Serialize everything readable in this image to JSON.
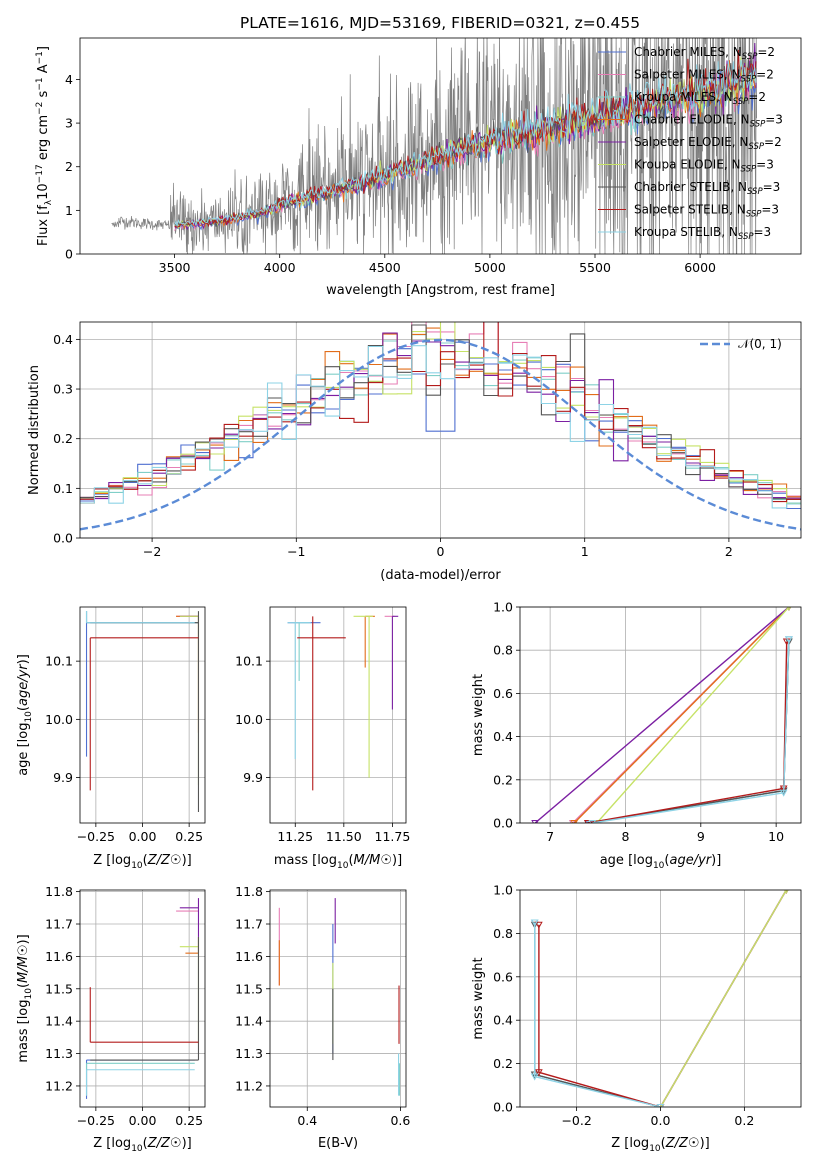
{
  "figure_title": "PLATE=1616, MJD=53169, FIBERID=0321, z=0.455",
  "model_colors": [
    "#4f6fd0",
    "#e77fb6",
    "#80cfc8",
    "#e26d1a",
    "#7b1fa2",
    "#c6e267",
    "#555555",
    "#b31b1b",
    "#8ed3e6"
  ],
  "legend_labels": [
    "Chabrier MILES, N",
    "Salpeter MILES, N",
    "Kroupa MILES, N",
    "Chabrier ELODIE, N",
    "Salpeter ELODIE, N",
    "Kroupa ELODIE, N",
    "Chabrier STELIB, N",
    "Salpeter STELIB, N",
    "Kroupa STELIB, N"
  ],
  "legend_sub": "SSP",
  "legend_nssp": [
    "=2",
    "=2",
    "=2",
    "=3",
    "=2",
    "=3",
    "=3",
    "=3",
    "=3"
  ],
  "chart_data": [
    {
      "id": "spectrum",
      "type": "line",
      "xlabel": "wavelength [Angstrom, rest frame]",
      "ylabel": "Flux [f_λ 10^-17 erg cm^-2 s^-1 A^-1]",
      "xlim": [
        3050,
        6480
      ],
      "ylim": [
        0,
        4.95
      ],
      "xticks": [
        3500,
        4000,
        4500,
        5000,
        5500,
        6000
      ],
      "yticks": [
        0,
        1,
        2,
        3,
        4
      ],
      "grid": false,
      "legend": "top-right",
      "data_color": "#7f7f7f",
      "data_x_range": [
        3200,
        6270
      ],
      "model_x_range": [
        3500,
        6270
      ],
      "model_profile": {
        "x": [
          3200,
          3350,
          3500,
          3700,
          3900,
          4000,
          4200,
          4400,
          4600,
          4800,
          5000,
          5200,
          5500,
          5800,
          6100,
          6270
        ],
        "y": [
          0.78,
          0.7,
          0.65,
          0.75,
          0.92,
          1.12,
          1.38,
          1.62,
          1.95,
          2.3,
          2.58,
          2.78,
          3.1,
          3.45,
          3.82,
          4.05
        ]
      }
    },
    {
      "id": "residuals",
      "type": "histogram",
      "xlabel": "(data-model)/error",
      "ylabel": "Normed distribution",
      "xlim": [
        -2.5,
        2.5
      ],
      "ylim": [
        0,
        0.435
      ],
      "xticks": [
        -2,
        -1,
        0,
        1,
        2
      ],
      "yticks": [
        0.0,
        0.1,
        0.2,
        0.3,
        0.4
      ],
      "grid": true,
      "bin_edges_range": [
        -2.5,
        2.5
      ],
      "n_bins": 50,
      "reference_curve": {
        "name": "𝒩(0, 1)",
        "mean": 0,
        "sigma": 1,
        "color": "#5b8bd6",
        "style": "dashed"
      },
      "legend": "top-right"
    },
    {
      "id": "age_vs_Z",
      "type": "errorbar",
      "xlabel": "Z [log10(Z/Z☉)]",
      "ylabel": "age [log10(age/yr)]",
      "xlim": [
        -0.335,
        0.335
      ],
      "ylim": [
        9.822,
        10.193
      ],
      "xticks": [
        -0.25,
        0.0,
        0.25
      ],
      "yticks": [
        9.9,
        10.0,
        10.1
      ],
      "grid": true,
      "points": [
        {
          "model": 0,
          "x": -0.3,
          "y": 10.166,
          "xerr": [
            0.0,
            0.6
          ],
          "yerr": [
            0.23,
            0.02
          ]
        },
        {
          "model": 1,
          "x": 0.18,
          "y": 10.177,
          "xerr": [
            0.0,
            0.12
          ],
          "yerr": [
            0.0,
            0.0
          ]
        },
        {
          "model": 2,
          "x": -0.3,
          "y": 10.166,
          "xerr": [
            0.0,
            0.6
          ],
          "yerr": [
            0.0,
            0.02
          ]
        },
        {
          "model": 3,
          "x": 0.3,
          "y": 10.177,
          "xerr": [
            0.12,
            0.0
          ],
          "yerr": [
            0.2,
            0.0
          ]
        },
        {
          "model": 4,
          "x": 0.3,
          "y": 10.177,
          "xerr": [
            0.1,
            0.0
          ],
          "yerr": [
            0.0,
            0.0
          ]
        },
        {
          "model": 5,
          "x": 0.3,
          "y": 10.177,
          "xerr": [
            0.1,
            0.0
          ],
          "yerr": [
            0.29,
            0.0
          ]
        },
        {
          "model": 6,
          "x": 0.3,
          "y": 10.166,
          "xerr": [
            0.58,
            0.0
          ],
          "yerr": [
            0.325,
            0.02
          ]
        },
        {
          "model": 7,
          "x": -0.28,
          "y": 10.14,
          "xerr": [
            0.0,
            0.58
          ],
          "yerr": [
            0.262,
            0.0
          ]
        },
        {
          "model": 8,
          "x": -0.3,
          "y": 10.166,
          "xerr": [
            0.0,
            0.58
          ],
          "yerr": [
            0.0,
            0.02
          ]
        }
      ]
    },
    {
      "id": "age_vs_mass",
      "type": "errorbar",
      "xlabel": "mass [log10(M/M☉)]",
      "ylabel": "",
      "xlim": [
        11.12,
        11.82
      ],
      "ylim": [
        9.822,
        10.193
      ],
      "xticks": [
        11.25,
        11.5,
        11.75
      ],
      "yticks": [
        9.9,
        10.0,
        10.1
      ],
      "grid": true,
      "points": [
        {
          "model": 0,
          "x": 11.28,
          "y": 10.166,
          "xerr": [
            0.07,
            0.1
          ],
          "yerr": [
            0.0,
            0.0
          ]
        },
        {
          "model": 1,
          "x": 11.74,
          "y": 10.177,
          "xerr": [
            0.03,
            0.02
          ],
          "yerr": [
            0.0,
            0.0
          ]
        },
        {
          "model": 2,
          "x": 11.27,
          "y": 10.166,
          "xerr": [
            0.03,
            0.05
          ],
          "yerr": [
            0.1,
            0.0
          ]
        },
        {
          "model": 3,
          "x": 11.61,
          "y": 10.177,
          "xerr": [
            0.0,
            0.05
          ],
          "yerr": [
            0.088,
            0.0
          ]
        },
        {
          "model": 4,
          "x": 11.75,
          "y": 10.177,
          "xerr": [
            0.0,
            0.03
          ],
          "yerr": [
            0.16,
            0.0
          ]
        },
        {
          "model": 5,
          "x": 11.63,
          "y": 10.177,
          "xerr": [
            0.08,
            0.02
          ],
          "yerr": [
            0.277,
            0.0
          ]
        },
        {
          "model": 6,
          "x": 11.28,
          "y": 10.177,
          "xerr": [
            0.0,
            0.0
          ],
          "yerr": [
            0.0,
            0.0
          ]
        },
        {
          "model": 7,
          "x": 11.34,
          "y": 10.14,
          "xerr": [
            0.08,
            0.17
          ],
          "yerr": [
            0.262,
            0.037
          ]
        },
        {
          "model": 8,
          "x": 11.25,
          "y": 10.166,
          "xerr": [
            0.04,
            0.08
          ],
          "yerr": [
            0.234,
            0.0
          ]
        }
      ]
    },
    {
      "id": "weight_vs_age",
      "type": "line",
      "xlabel": "age [log10(age/yr)]",
      "ylabel": "mass weight",
      "xlim": [
        6.6,
        10.33
      ],
      "ylim": [
        0,
        1.0
      ],
      "xticks": [
        7,
        8,
        9,
        10
      ],
      "yticks": [
        0.0,
        0.2,
        0.4,
        0.6,
        0.8,
        1.0
      ],
      "grid": true,
      "series": [
        {
          "model": 0,
          "x": [
            7.52,
            10.1,
            10.17
          ],
          "y": [
            0.0,
            0.15,
            0.85
          ]
        },
        {
          "model": 1,
          "x": [
            7.3,
            10.17
          ],
          "y": [
            0.0,
            1.0
          ]
        },
        {
          "model": 2,
          "x": [
            7.54,
            10.1,
            10.17
          ],
          "y": [
            0.0,
            0.15,
            0.85
          ]
        },
        {
          "model": 3,
          "x": [
            7.32,
            10.17
          ],
          "y": [
            0.0,
            1.0
          ]
        },
        {
          "model": 4,
          "x": [
            6.8,
            10.17
          ],
          "y": [
            0.0,
            1.0
          ]
        },
        {
          "model": 5,
          "x": [
            7.62,
            10.17
          ],
          "y": [
            0.0,
            1.0
          ]
        },
        {
          "model": 6,
          "x": [
            7.5,
            10.1,
            10.17
          ],
          "y": [
            0.0,
            0.15,
            0.84
          ]
        },
        {
          "model": 7,
          "x": [
            7.5,
            10.1,
            10.14
          ],
          "y": [
            0.0,
            0.16,
            0.84
          ]
        },
        {
          "model": 8,
          "x": [
            7.56,
            10.1,
            10.17
          ],
          "y": [
            0.0,
            0.14,
            0.85
          ]
        }
      ]
    },
    {
      "id": "mass_vs_Z",
      "type": "errorbar",
      "xlabel": "Z [log10(Z/Z☉)]",
      "ylabel": "mass [log10(M/M☉)]",
      "xlim": [
        -0.335,
        0.335
      ],
      "ylim": [
        11.135,
        11.805
      ],
      "xticks": [
        -0.25,
        0.0,
        0.25
      ],
      "yticks": [
        11.2,
        11.3,
        11.4,
        11.5,
        11.6,
        11.7,
        11.8
      ],
      "grid": true,
      "points": [
        {
          "model": 0,
          "x": -0.3,
          "y": 11.28,
          "xerr": [
            0.0,
            0.58
          ],
          "yerr": [
            0.12,
            0.0
          ]
        },
        {
          "model": 1,
          "x": 0.18,
          "y": 11.74,
          "xerr": [
            0.0,
            0.12
          ],
          "yerr": [
            0.0,
            0.0
          ]
        },
        {
          "model": 2,
          "x": -0.3,
          "y": 11.27,
          "xerr": [
            0.0,
            0.58
          ],
          "yerr": [
            0.1,
            0.0
          ]
        },
        {
          "model": 3,
          "x": 0.3,
          "y": 11.61,
          "xerr": [
            0.07,
            0.0
          ],
          "yerr": [
            0.0,
            0.05
          ]
        },
        {
          "model": 4,
          "x": 0.3,
          "y": 11.75,
          "xerr": [
            0.1,
            0.0
          ],
          "yerr": [
            0.09,
            0.03
          ]
        },
        {
          "model": 5,
          "x": 0.3,
          "y": 11.63,
          "xerr": [
            0.1,
            0.0
          ],
          "yerr": [
            0.3,
            0.02
          ]
        },
        {
          "model": 6,
          "x": 0.3,
          "y": 11.28,
          "xerr": [
            0.58,
            0.0
          ],
          "yerr": [
            0.0,
            0.38
          ]
        },
        {
          "model": 7,
          "x": -0.28,
          "y": 11.335,
          "xerr": [
            0.0,
            0.58
          ],
          "yerr": [
            0.0,
            0.17
          ]
        },
        {
          "model": 8,
          "x": -0.3,
          "y": 11.25,
          "xerr": [
            0.0,
            0.58
          ],
          "yerr": [
            0.08,
            0.0
          ]
        }
      ]
    },
    {
      "id": "mass_vs_EBV",
      "type": "errorbar",
      "xlabel": "E(B-V)",
      "ylabel": "",
      "xlim": [
        0.32,
        0.612
      ],
      "ylim": [
        11.135,
        11.805
      ],
      "xticks": [
        0.4,
        0.6
      ],
      "yticks": [
        11.2,
        11.3,
        11.4,
        11.5,
        11.6,
        11.7,
        11.8
      ],
      "grid": true,
      "points": [
        {
          "model": 0,
          "x": 0.455,
          "y": 11.5,
          "xerr": [
            0.0,
            0.0
          ],
          "yerr": [
            0.2,
            0.2
          ]
        },
        {
          "model": 1,
          "x": 0.34,
          "y": 11.63,
          "xerr": [
            0.0,
            0.0
          ],
          "yerr": [
            0.12,
            0.12
          ]
        },
        {
          "model": 2,
          "x": 0.598,
          "y": 11.22,
          "xerr": [
            0.0,
            0.0
          ],
          "yerr": [
            0.05,
            0.05
          ]
        },
        {
          "model": 3,
          "x": 0.34,
          "y": 11.61,
          "xerr": [
            0.0,
            0.0
          ],
          "yerr": [
            0.1,
            0.04
          ]
        },
        {
          "model": 4,
          "x": 0.46,
          "y": 11.75,
          "xerr": [
            0.0,
            0.0
          ],
          "yerr": [
            0.11,
            0.03
          ]
        },
        {
          "model": 5,
          "x": 0.455,
          "y": 11.45,
          "xerr": [
            0.0,
            0.0
          ],
          "yerr": [
            0.12,
            0.13
          ]
        },
        {
          "model": 6,
          "x": 0.455,
          "y": 11.4,
          "xerr": [
            0.0,
            0.0
          ],
          "yerr": [
            0.12,
            0.1
          ]
        },
        {
          "model": 7,
          "x": 0.597,
          "y": 11.43,
          "xerr": [
            0.0,
            0.0
          ],
          "yerr": [
            0.1,
            0.08
          ]
        },
        {
          "model": 8,
          "x": 0.596,
          "y": 11.25,
          "xerr": [
            0.0,
            0.0
          ],
          "yerr": [
            0.08,
            0.05
          ]
        }
      ]
    },
    {
      "id": "weight_vs_Z",
      "type": "line",
      "xlabel": "Z [log10(Z/Z☉)]",
      "ylabel": "mass weight",
      "xlim": [
        -0.335,
        0.335
      ],
      "ylim": [
        0,
        1.0
      ],
      "xticks": [
        -0.2,
        0.0,
        0.2
      ],
      "yticks": [
        0.0,
        0.2,
        0.4,
        0.6,
        0.8,
        1.0
      ],
      "grid": true,
      "series": [
        {
          "model": 0,
          "x": [
            -0.3,
            -0.3,
            0.0
          ],
          "y": [
            0.85,
            0.15,
            0.0
          ]
        },
        {
          "model": 1,
          "x": [
            0.0,
            0.3
          ],
          "y": [
            0.0,
            1.0
          ]
        },
        {
          "model": 2,
          "x": [
            -0.3,
            -0.3,
            0.0
          ],
          "y": [
            0.85,
            0.15,
            0.0
          ]
        },
        {
          "model": 3,
          "x": [
            0.0,
            0.3
          ],
          "y": [
            0.0,
            1.0
          ]
        },
        {
          "model": 4,
          "x": [
            0.0,
            0.3
          ],
          "y": [
            0.0,
            1.0
          ]
        },
        {
          "model": 5,
          "x": [
            0.0,
            0.3
          ],
          "y": [
            0.0,
            1.0
          ]
        },
        {
          "model": 6,
          "x": [
            -0.3,
            -0.3,
            0.0
          ],
          "y": [
            0.84,
            0.15,
            0.0
          ]
        },
        {
          "model": 7,
          "x": [
            -0.29,
            -0.29,
            0.0
          ],
          "y": [
            0.84,
            0.16,
            0.0
          ]
        },
        {
          "model": 8,
          "x": [
            -0.3,
            -0.3,
            0.0
          ],
          "y": [
            0.85,
            0.14,
            0.0
          ]
        }
      ]
    }
  ]
}
